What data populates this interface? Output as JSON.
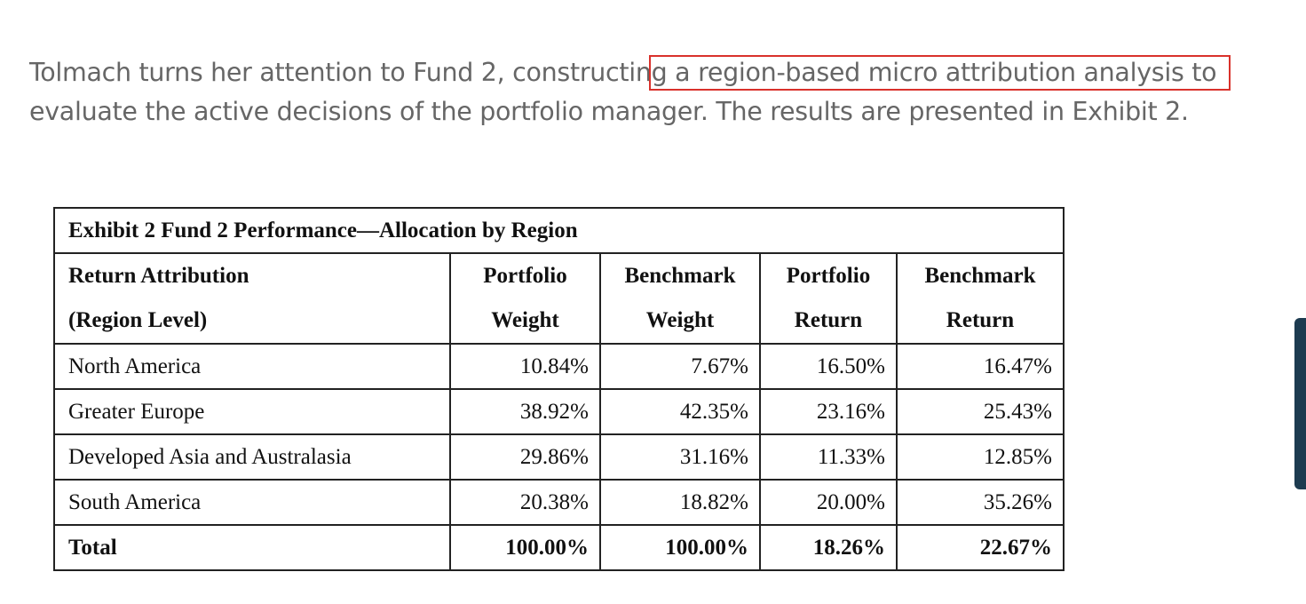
{
  "paragraph": {
    "lines": [
      "Tolmach turns her attention to Fund 2, constructing a region-based micro attribution analysis to",
      "evaluate the active decisions of the portfolio manager. The results are presented in Exhibit 2."
    ]
  },
  "table": {
    "title": "Exhibit 2 Fund 2 Performance—Allocation by Region",
    "header": [
      [
        "Return Attribution",
        "(Region Level)"
      ],
      [
        "Portfolio",
        "Weight"
      ],
      [
        "Benchmark",
        "Weight"
      ],
      [
        "Portfolio",
        "Return"
      ],
      [
        "Benchmark",
        "Return"
      ]
    ],
    "rows": [
      [
        "North America",
        "10.84%",
        "7.67%",
        "16.50%",
        "16.47%"
      ],
      [
        "Greater Europe",
        "38.92%",
        "42.35%",
        "23.16%",
        "25.43%"
      ],
      [
        "Developed Asia and Australasia",
        "29.86%",
        "31.16%",
        "11.33%",
        "12.85%"
      ],
      [
        "South America",
        "20.38%",
        "18.82%",
        "20.00%",
        "35.26%"
      ]
    ],
    "total": [
      "Total",
      "100.00%",
      "100.00%",
      "18.26%",
      "22.67%"
    ]
  }
}
